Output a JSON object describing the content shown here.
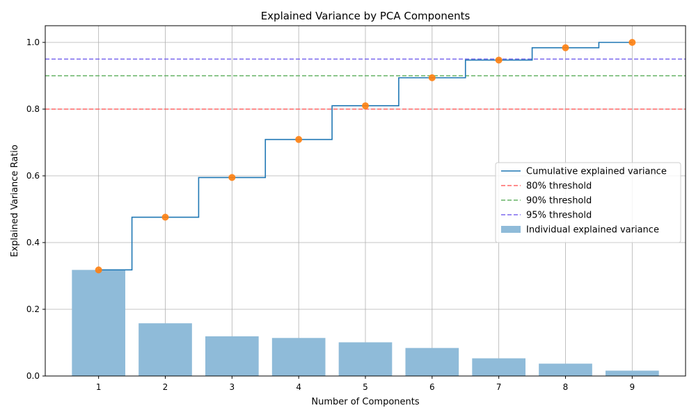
{
  "chart_data": {
    "type": "bar",
    "title": "Explained Variance by PCA Components",
    "xlabel": "Number of Components",
    "ylabel": "Explained Variance Ratio",
    "categories": [
      "1",
      "2",
      "3",
      "4",
      "5",
      "6",
      "7",
      "8",
      "9"
    ],
    "x": [
      1,
      2,
      3,
      4,
      5,
      6,
      7,
      8,
      9
    ],
    "xlim": [
      0.2,
      9.8
    ],
    "ylim": [
      0,
      1.05
    ],
    "y_ticks": [
      "0.0",
      "0.2",
      "0.4",
      "0.6",
      "0.8",
      "1.0"
    ],
    "y_tick_values": [
      0,
      0.2,
      0.4,
      0.6,
      0.8,
      1.0
    ],
    "grid": true,
    "legend_position": "center-right",
    "series": [
      {
        "name": "Individual explained variance",
        "kind": "bar",
        "color": "#8fbbd9",
        "values": [
          0.318,
          0.158,
          0.119,
          0.114,
          0.101,
          0.084,
          0.053,
          0.037,
          0.016
        ]
      },
      {
        "name": "Cumulative explained variance",
        "kind": "step",
        "color": "#1f77b4",
        "values": [
          0.318,
          0.476,
          0.595,
          0.709,
          0.81,
          0.894,
          0.947,
          0.984,
          1.0
        ]
      },
      {
        "kind": "scatter",
        "color": "#ff7f0e",
        "values": [
          0.318,
          0.476,
          0.595,
          0.709,
          0.81,
          0.894,
          0.947,
          0.984,
          1.0
        ]
      }
    ],
    "thresholds": [
      {
        "name": "80% threshold",
        "value": 0.8,
        "color": "#ff6666"
      },
      {
        "name": "90% threshold",
        "value": 0.9,
        "color": "#66b366"
      },
      {
        "name": "95% threshold",
        "value": 0.95,
        "color": "#7b68ee"
      }
    ]
  }
}
